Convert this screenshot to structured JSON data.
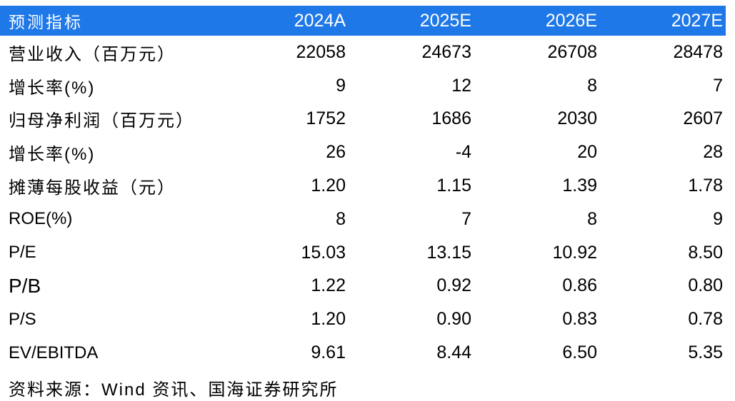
{
  "header": {
    "label": "预测指标",
    "years": [
      "2024A",
      "2025E",
      "2026E",
      "2027E"
    ]
  },
  "rows": [
    {
      "label": "营业收入（百万元）",
      "values": [
        "22058",
        "24673",
        "26708",
        "28478"
      ]
    },
    {
      "label": "增长率(%)",
      "values": [
        "9",
        "12",
        "8",
        "7"
      ]
    },
    {
      "label": "归母净利润（百万元）",
      "values": [
        "1752",
        "1686",
        "2030",
        "2607"
      ]
    },
    {
      "label": "增长率(%)",
      "values": [
        "26",
        "-4",
        "20",
        "28"
      ]
    },
    {
      "label": "摊薄每股收益（元）",
      "values": [
        "1.20",
        "1.15",
        "1.39",
        "1.78"
      ]
    },
    {
      "label": "ROE(%)",
      "values": [
        "8",
        "7",
        "8",
        "9"
      ]
    },
    {
      "label": "P/E",
      "values": [
        "15.03",
        "13.15",
        "10.92",
        "8.50"
      ]
    },
    {
      "label": "P/B",
      "values": [
        "1.22",
        "0.92",
        "0.86",
        "0.80"
      ]
    },
    {
      "label": "P/S",
      "values": [
        "1.20",
        "0.90",
        "0.83",
        "0.78"
      ]
    },
    {
      "label": "EV/EBITDA",
      "values": [
        "9.61",
        "8.44",
        "6.50",
        "5.35"
      ]
    }
  ],
  "source": "资料来源：Wind 资讯、国海证券研究所",
  "colors": {
    "header_background": "#1f78e8",
    "header_text": "#ffffff",
    "body_text": "#000000"
  }
}
